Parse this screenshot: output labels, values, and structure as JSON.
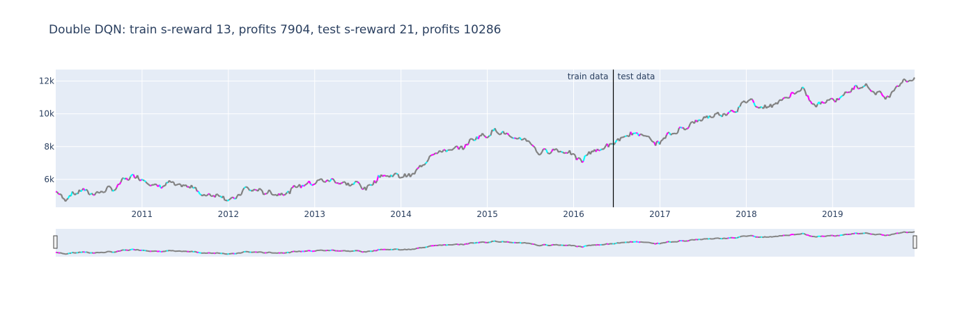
{
  "chart_data": {
    "type": "line",
    "title": "Double DQN: train s-reward 13, profits 7904, test s-reward 21, profits 10286",
    "xlabel": "",
    "ylabel": "",
    "xlim": [
      2010.0,
      2019.95
    ],
    "ylim": [
      4300,
      12700
    ],
    "x_ticks": [
      "2011",
      "2012",
      "2013",
      "2014",
      "2015",
      "2016",
      "2017",
      "2018",
      "2019"
    ],
    "y_ticks": [
      {
        "value": 6000,
        "label": "6k"
      },
      {
        "value": 8000,
        "label": "8k"
      },
      {
        "value": 10000,
        "label": "10k"
      },
      {
        "value": 12000,
        "label": "12k"
      }
    ],
    "grid": true,
    "legend": "none",
    "split": {
      "x": 2016.46,
      "left_label": "train data",
      "right_label": "test data"
    },
    "colors": {
      "hold": "#808080",
      "buy": "#00ffff",
      "sell": "#ff00ff",
      "plot_bg": "#e5ecf6",
      "grid": "#ffffff",
      "text": "#2a3f5f",
      "split_line": "#000000"
    },
    "series": [
      {
        "x": [
          2010.0,
          2010.1,
          2010.2,
          2010.3,
          2010.45,
          2010.6,
          2010.7,
          2010.8,
          2010.95,
          2011.05,
          2011.2,
          2011.3,
          2011.45,
          2011.6,
          2011.7,
          2011.85,
          2011.95,
          2012.05,
          2012.2,
          2012.35,
          2012.5,
          2012.65,
          2012.8,
          2012.95,
          2013.1,
          2013.25,
          2013.35,
          2013.5,
          2013.6,
          2013.75,
          2013.9,
          2014.1,
          2014.2,
          2014.35,
          2014.45,
          2014.6,
          2014.75,
          2014.85,
          2015.0,
          2015.1,
          2015.2,
          2015.3,
          2015.45,
          2015.6,
          2015.75,
          2015.9,
          2016.0,
          2016.1,
          2016.15,
          2016.3,
          2016.46,
          2016.6,
          2016.7,
          2016.85,
          2016.95,
          2017.1,
          2017.3,
          2017.45,
          2017.6,
          2017.75,
          2017.9,
          2018.05,
          2018.1,
          2018.25,
          2018.4,
          2018.5,
          2018.65,
          2018.8,
          2018.9,
          2019.05,
          2019.2,
          2019.35,
          2019.5,
          2019.65,
          2019.75,
          2019.85,
          2019.95
        ],
        "y": [
          5250,
          4800,
          5100,
          5350,
          5100,
          5400,
          5450,
          6050,
          6200,
          5850,
          5500,
          5800,
          5600,
          5550,
          5000,
          5100,
          4900,
          4700,
          5450,
          5300,
          5150,
          5100,
          5600,
          5750,
          5950,
          5900,
          5700,
          5750,
          5400,
          6200,
          6250,
          6200,
          6600,
          7500,
          7700,
          7800,
          8050,
          8550,
          8700,
          9000,
          8800,
          8450,
          8500,
          7600,
          7800,
          7700,
          7500,
          7000,
          7600,
          7800,
          8200,
          8600,
          8800,
          8700,
          8100,
          8700,
          9200,
          9600,
          9900,
          10000,
          10300,
          11000,
          10500,
          10400,
          10800,
          11100,
          11500,
          10400,
          10800,
          10900,
          11400,
          11800,
          11300,
          11000,
          11800,
          12000,
          12200
        ]
      }
    ]
  }
}
